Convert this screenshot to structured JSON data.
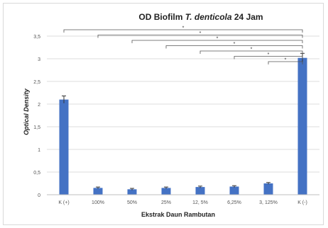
{
  "chart_data": {
    "type": "bar",
    "title_parts": [
      {
        "text": "OD Biofilm ",
        "italic": false
      },
      {
        "text": "T. denticola",
        "italic": true
      },
      {
        "text": " 24 Jam",
        "italic": false
      }
    ],
    "xlabel": "Ekstrak Daun Rambutan",
    "ylabel": "Optical Density",
    "categories": [
      "K (+)",
      "100%",
      "50%",
      "25%",
      "12, 5%",
      "6,25%",
      "3, 125%",
      "K (-)"
    ],
    "values": [
      2.1,
      0.15,
      0.12,
      0.15,
      0.17,
      0.18,
      0.25,
      3.02
    ],
    "errors": [
      0.08,
      0.02,
      0.02,
      0.02,
      0.02,
      0.02,
      0.02,
      0.1
    ],
    "ylim": [
      0,
      3.5
    ],
    "yticks": [
      "0",
      "0,5",
      "1",
      "1,5",
      "2",
      "2,5",
      "3",
      "3,5"
    ],
    "grid": true,
    "bar_color": "#4472c4",
    "significance": {
      "target_index": 7,
      "pairs_from": [
        0,
        1,
        2,
        3,
        4,
        5,
        6
      ],
      "marker": "*"
    }
  }
}
